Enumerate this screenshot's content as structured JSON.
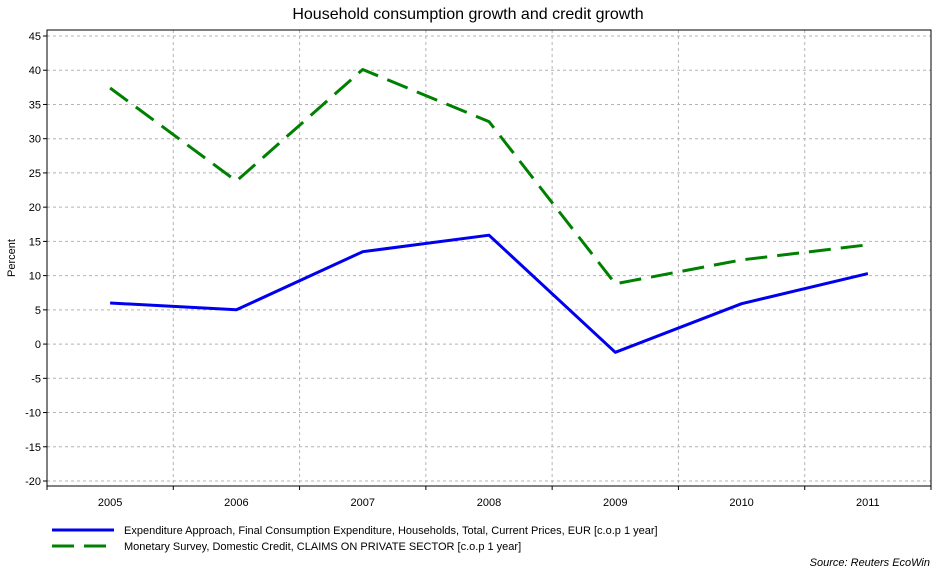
{
  "chart_data": {
    "type": "line",
    "title": "Household consumption growth and credit growth",
    "xlabel": "",
    "ylabel": "Percent",
    "x": [
      "2005",
      "2006",
      "2007",
      "2008",
      "2009",
      "2010",
      "2011"
    ],
    "ylim": [
      -20,
      45
    ],
    "yticks": [
      45,
      40,
      35,
      30,
      25,
      20,
      15,
      10,
      5,
      0,
      -5,
      -10,
      -15,
      -20
    ],
    "grid": true,
    "legend_position": "bottom-left",
    "series": [
      {
        "name": "Expenditure Approach, Final Consumption Expenditure, Households, Total, Current Prices, EUR [c.o.p 1 year]",
        "color": "#0000ee",
        "style": "solid",
        "values": [
          6.0,
          5.0,
          13.5,
          15.9,
          -1.2,
          5.9,
          10.3
        ]
      },
      {
        "name": "Monetary Survey, Domestic Credit, CLAIMS ON PRIVATE SECTOR [c.o.p 1 year]",
        "color": "#008000",
        "style": "dashed",
        "values": [
          37.4,
          23.8,
          40.1,
          32.5,
          8.8,
          12.3,
          14.5
        ]
      }
    ],
    "source": "Source: Reuters EcoWin"
  }
}
